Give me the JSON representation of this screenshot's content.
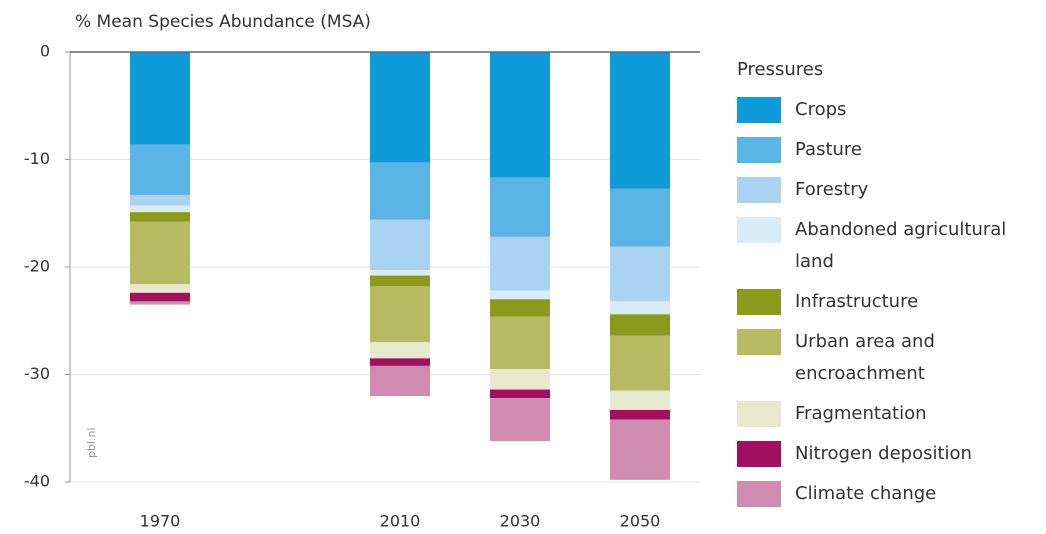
{
  "chart_data": {
    "type": "stacked_bar",
    "title": "% Mean Species Abundance (MSA)",
    "source": "pbl.nl",
    "legend_title": "Pressures",
    "x": [
      1970,
      2010,
      2030,
      2050
    ],
    "xlim": [
      1955,
      2060
    ],
    "ylim": [
      -40,
      0
    ],
    "yticks": [
      0,
      -10,
      -20,
      -30,
      -40
    ],
    "grid": true,
    "series": [
      {
        "name": "Crops",
        "color": "#0f9ad8",
        "values": [
          -8.6,
          -10.3,
          -11.7,
          -12.7
        ]
      },
      {
        "name": "Pasture",
        "color": "#5ab4e5",
        "values": [
          -4.7,
          -5.3,
          -5.5,
          -5.4
        ]
      },
      {
        "name": "Forestry",
        "color": "#a9d3f0",
        "values": [
          -1.0,
          -4.7,
          -5.0,
          -5.1
        ]
      },
      {
        "name": "Abandoned agricultural land",
        "color": "#d8ebf8",
        "values": [
          -0.6,
          -0.5,
          -0.8,
          -1.2
        ]
      },
      {
        "name": "Infrastructure",
        "color": "#8a9a1d",
        "values": [
          -0.9,
          -1.0,
          -1.6,
          -2.0
        ]
      },
      {
        "name": "Urban area and encroachment",
        "color": "#b6ba62",
        "values": [
          -5.8,
          -5.2,
          -4.9,
          -5.1
        ]
      },
      {
        "name": "Fragmentation",
        "color": "#e8e8cc",
        "values": [
          -0.8,
          -1.5,
          -1.9,
          -1.8
        ]
      },
      {
        "name": "Nitrogen deposition",
        "color": "#a10f5f",
        "values": [
          -0.8,
          -0.7,
          -0.8,
          -0.9
        ]
      },
      {
        "name": "Climate change",
        "color": "#d08cb0",
        "values": [
          -0.3,
          -2.8,
          -4.0,
          -5.6
        ]
      }
    ]
  }
}
